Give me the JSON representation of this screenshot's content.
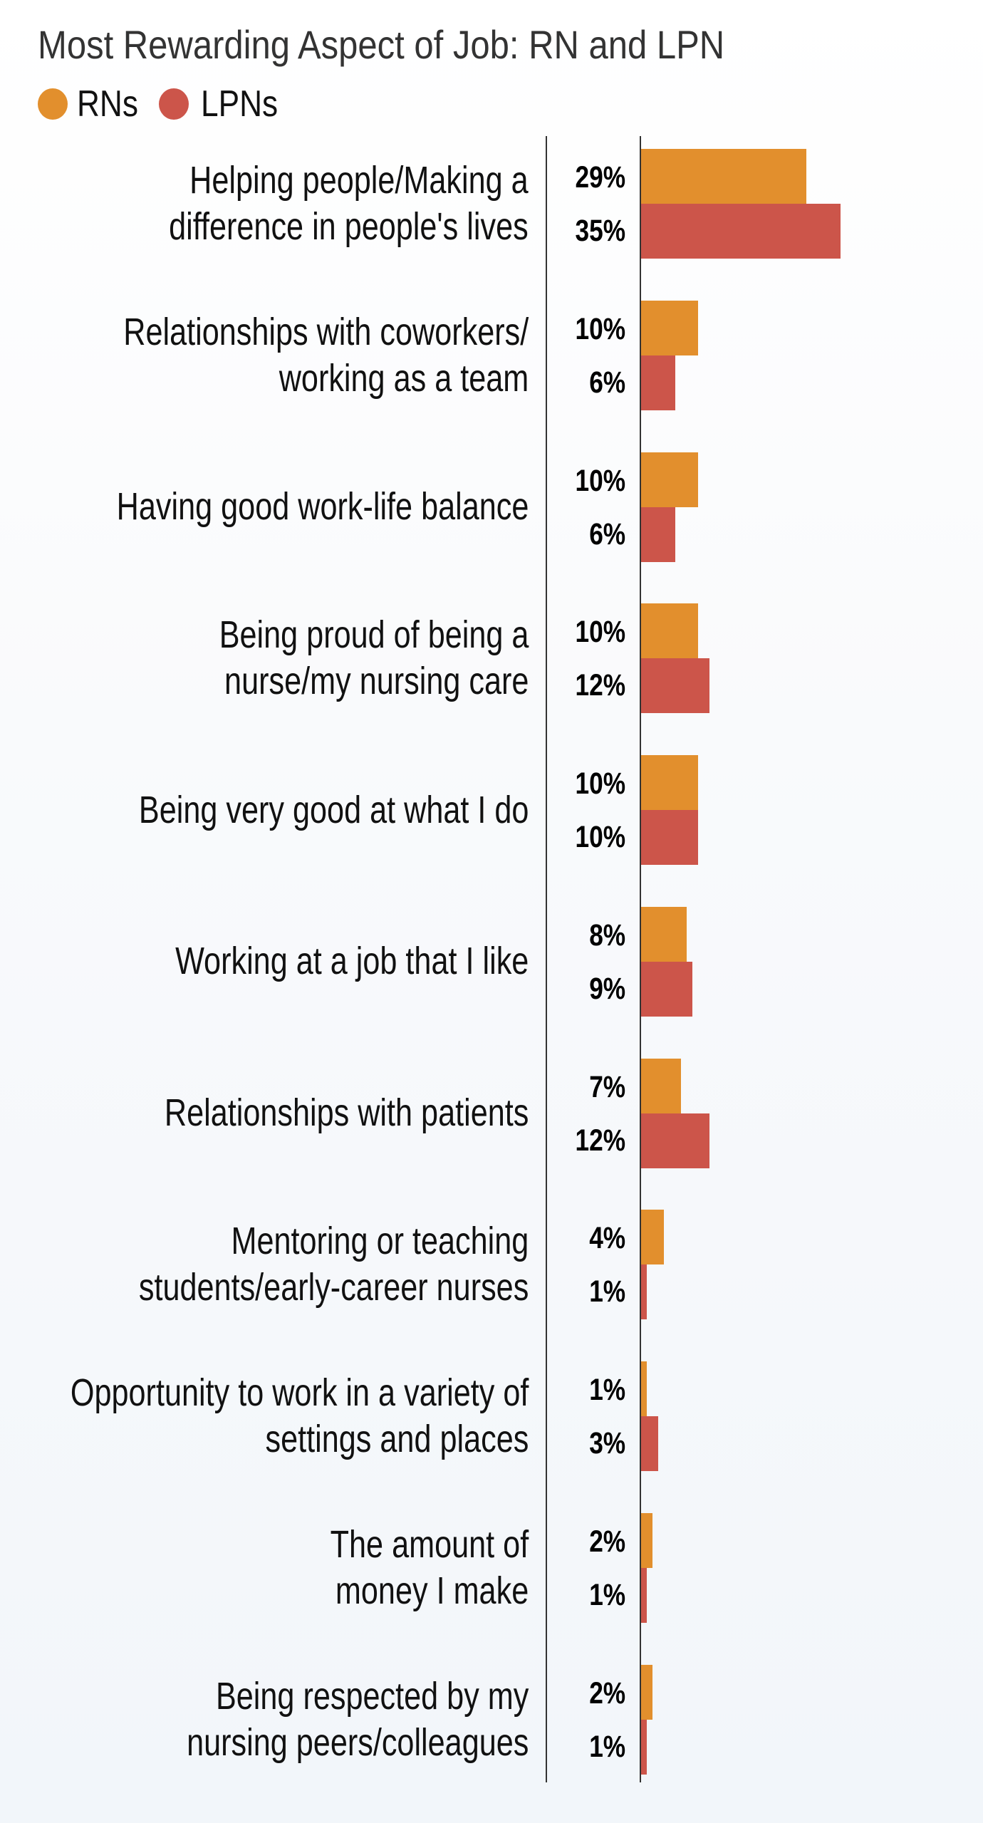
{
  "title": "Most Rewarding Aspect of Job: RN and LPN",
  "legend": [
    {
      "label": "RNs",
      "color": "#e28f2d",
      "icon": "circle-swatch"
    },
    {
      "label": "LPNs",
      "color": "#cc554a",
      "icon": "circle-swatch"
    }
  ],
  "colors": {
    "rn": "#e28f2d",
    "lpn": "#cc554a",
    "axis": "#333333",
    "title": "#333333",
    "text": "#111111"
  },
  "groups": [
    {
      "label": "Helping people/Making a\ndifference in people's lives",
      "rn": 29,
      "lpn": 35,
      "rn_label": "29%",
      "lpn_label": "35%"
    },
    {
      "label": "Relationships with coworkers/\nworking as a team",
      "rn": 10,
      "lpn": 6,
      "rn_label": "10%",
      "lpn_label": "6%"
    },
    {
      "label": "Having good work-life balance",
      "rn": 10,
      "lpn": 6,
      "rn_label": "10%",
      "lpn_label": "6%"
    },
    {
      "label": "Being proud of being a\nnurse/my nursing care",
      "rn": 10,
      "lpn": 12,
      "rn_label": "10%",
      "lpn_label": "12%"
    },
    {
      "label": "Being very good at what I do",
      "rn": 10,
      "lpn": 10,
      "rn_label": "10%",
      "lpn_label": "10%"
    },
    {
      "label": "Working at a job that I like",
      "rn": 8,
      "lpn": 9,
      "rn_label": "8%",
      "lpn_label": "9%"
    },
    {
      "label": "Relationships with patients",
      "rn": 7,
      "lpn": 12,
      "rn_label": "7%",
      "lpn_label": "12%"
    },
    {
      "label": "Mentoring or teaching\nstudents/early-career nurses",
      "rn": 4,
      "lpn": 1,
      "rn_label": "4%",
      "lpn_label": "1%"
    },
    {
      "label": "Opportunity to work in a variety of\nsettings and places",
      "rn": 1,
      "lpn": 3,
      "rn_label": "1%",
      "lpn_label": "3%"
    },
    {
      "label": "The amount of\nmoney I make",
      "rn": 2,
      "lpn": 1,
      "rn_label": "2%",
      "lpn_label": "1%"
    },
    {
      "label": "Being respected by my\nnursing peers/colleagues",
      "rn": 2,
      "lpn": 1,
      "rn_label": "2%",
      "lpn_label": "1%"
    }
  ],
  "chart_data": {
    "type": "bar",
    "orientation": "horizontal",
    "title": "Most Rewarding Aspect of Job: RN and LPN",
    "xlabel": "",
    "ylabel": "",
    "categories": [
      "Helping people/Making a difference in people's lives",
      "Relationships with coworkers/working as a team",
      "Having good work-life balance",
      "Being proud of being a nurse/my nursing care",
      "Being very good at what I do",
      "Working at a job that I like",
      "Relationships with patients",
      "Mentoring or teaching students/early-career nurses",
      "Opportunity to work in a variety of settings and places",
      "The amount of money I make",
      "Being respected by my nursing peers/colleagues"
    ],
    "series": [
      {
        "name": "RNs",
        "color": "#e28f2d",
        "values": [
          29,
          10,
          10,
          10,
          10,
          8,
          7,
          4,
          1,
          2,
          2
        ]
      },
      {
        "name": "LPNs",
        "color": "#cc554a",
        "values": [
          35,
          6,
          6,
          12,
          10,
          9,
          12,
          1,
          3,
          1,
          1
        ]
      }
    ],
    "value_format": "percent",
    "data_labels": true,
    "grid": false,
    "legend_position": "top-left",
    "xlim": [
      0,
      35
    ]
  }
}
